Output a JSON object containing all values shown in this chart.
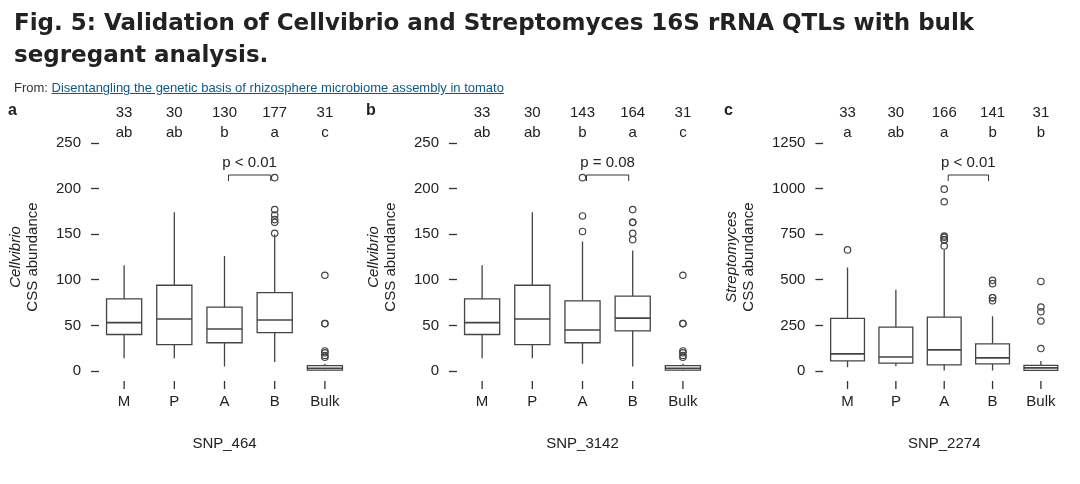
{
  "chart_data": [
    {
      "type": "box",
      "title": "Fig. 5: Validation of Cellvibrio and Streptomyces 16S rRNA QTLs with bulk segregant analysis.",
      "subtitle": "From: Disentangling the genetic basis of rhizosphere microbiome assembly in tomato",
      "xlabel": "SNP_464",
      "ylabel": "Cellvibrio\nCSS abundance",
      "categories": [
        "M",
        "P",
        "A",
        "B",
        "Bulk"
      ],
      "boxes": [
        {
          "low": 14,
          "q1": 40,
          "median": 53,
          "q3": 79,
          "high": 116
        },
        {
          "low": 14,
          "q1": 29,
          "median": 57,
          "q3": 94,
          "high": 174
        },
        {
          "low": 5,
          "q1": 31,
          "median": 46,
          "q3": 70,
          "high": 126
        },
        {
          "low": 10,
          "q1": 42,
          "median": 56,
          "q3": 86,
          "high": 150,
          "outliers": [
            212,
            177,
            171,
            166,
            163,
            151
          ]
        },
        {
          "low": 0,
          "q1": 1,
          "median": 3,
          "q3": 6,
          "high": 8,
          "outliers": [
            105,
            52,
            52,
            22,
            20,
            17,
            15
          ]
        }
      ],
      "color": "#444444",
      "marker": "circle",
      "ylim": [
        0,
        250
      ],
      "yticks": [
        0,
        50,
        100,
        150,
        200,
        250
      ],
      "grid": false,
      "legend": false,
      "annotations": [
        "a",
        "33",
        "30",
        "130",
        "177",
        "31",
        "ab",
        "ab",
        "b",
        "a",
        "c",
        "p < 0.01"
      ]
    },
    {
      "type": "box",
      "xlabel": "SNP_3142",
      "ylabel": "Cellvibrio\nCSS abundance",
      "categories": [
        "M",
        "P",
        "A",
        "B",
        "Bulk"
      ],
      "boxes": [
        {
          "low": 14,
          "q1": 40,
          "median": 53,
          "q3": 79,
          "high": 116
        },
        {
          "low": 14,
          "q1": 29,
          "median": 57,
          "q3": 94,
          "high": 174
        },
        {
          "low": 8,
          "q1": 31,
          "median": 45,
          "q3": 77,
          "high": 142,
          "outliers": [
            212,
            170,
            153
          ]
        },
        {
          "low": 5,
          "q1": 44,
          "median": 58,
          "q3": 82,
          "high": 132,
          "outliers": [
            177,
            163,
            163,
            151,
            144
          ]
        },
        {
          "low": 0,
          "q1": 1,
          "median": 3,
          "q3": 6,
          "high": 8,
          "outliers": [
            105,
            52,
            52,
            22,
            20,
            17,
            15
          ]
        }
      ],
      "color": "#444444",
      "marker": "circle",
      "ylim": [
        0,
        250
      ],
      "yticks": [
        0,
        50,
        100,
        150,
        200,
        250
      ],
      "grid": false,
      "legend": false,
      "annotations": [
        "b",
        "33",
        "30",
        "143",
        "164",
        "31",
        "ab",
        "ab",
        "b",
        "a",
        "c",
        "p = 0.08"
      ]
    },
    {
      "type": "box",
      "xlabel": "SNP_2274",
      "ylabel": "Streptomyces\nCSS abundance",
      "categories": [
        "M",
        "P",
        "A",
        "B",
        "Bulk"
      ],
      "boxes": [
        {
          "low": 21,
          "q1": 55,
          "median": 94,
          "q3": 288,
          "high": 568,
          "outliers": [
            664
          ]
        },
        {
          "low": 26,
          "q1": 43,
          "median": 77,
          "q3": 240,
          "high": 445
        },
        {
          "low": 3,
          "q1": 34,
          "median": 116,
          "q3": 295,
          "high": 664,
          "outliers": [
            997,
            928,
            740,
            733,
            719,
            719,
            685
          ]
        },
        {
          "low": 3,
          "q1": 39,
          "median": 72,
          "q3": 149,
          "high": 300,
          "outliers": [
            497,
            479,
            402,
            402,
            385
          ]
        },
        {
          "low": 0,
          "q1": 3,
          "median": 17,
          "q3": 31,
          "high": 55,
          "outliers": [
            491,
            351,
            325,
            274,
            123
          ]
        }
      ],
      "color": "#444444",
      "marker": "circle",
      "ylim": [
        0,
        1250
      ],
      "yticks": [
        0,
        250,
        500,
        750,
        1000,
        1250
      ],
      "grid": false,
      "legend": false,
      "annotations": [
        "c",
        "33",
        "30",
        "166",
        "141",
        "31",
        "a",
        "ab",
        "a",
        "b",
        "b",
        "p < 0.01"
      ]
    }
  ]
}
